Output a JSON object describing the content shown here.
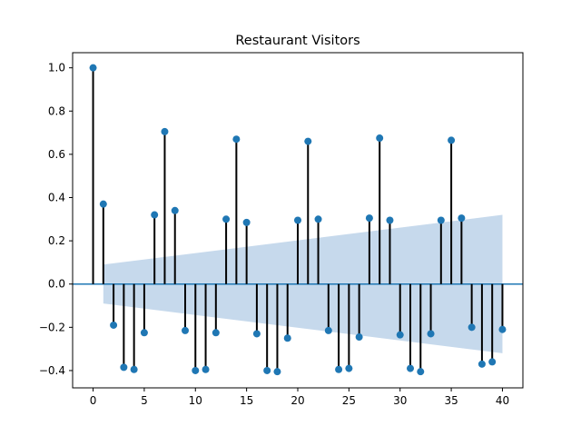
{
  "chart_data": {
    "type": "stem",
    "title": "Restaurant Visitors",
    "xlabel": "",
    "ylabel": "",
    "xlim": [
      -2,
      42
    ],
    "ylim": [
      -0.48,
      1.07
    ],
    "xticks": [
      0,
      5,
      10,
      15,
      20,
      25,
      30,
      35,
      40
    ],
    "yticks": [
      -0.4,
      -0.2,
      0.0,
      0.2,
      0.4,
      0.6,
      0.8,
      1.0
    ],
    "ytick_labels": [
      "−0.4",
      "−0.2",
      "0.0",
      "0.2",
      "0.4",
      "0.6",
      "0.8",
      "1.0"
    ],
    "grid": false,
    "legend": "none",
    "series": [
      {
        "x": [
          0,
          1,
          2,
          3,
          4,
          5,
          6,
          7,
          8,
          9,
          10,
          11,
          12,
          13,
          14,
          15,
          16,
          17,
          18,
          19,
          20,
          21,
          22,
          23,
          24,
          25,
          26,
          27,
          28,
          29,
          30,
          31,
          32,
          33,
          34,
          35,
          36,
          37,
          38,
          39,
          40
        ],
        "values": [
          1.0,
          0.37,
          -0.19,
          -0.385,
          -0.395,
          -0.225,
          0.32,
          0.705,
          0.34,
          -0.215,
          -0.4,
          -0.395,
          -0.225,
          0.3,
          0.67,
          0.285,
          -0.23,
          -0.4,
          -0.405,
          -0.25,
          0.295,
          0.66,
          0.3,
          -0.215,
          -0.395,
          -0.39,
          -0.245,
          0.305,
          0.675,
          0.295,
          -0.235,
          -0.39,
          -0.405,
          -0.23,
          0.295,
          0.665,
          0.305,
          -0.2,
          -0.37,
          -0.36,
          -0.21
        ]
      }
    ],
    "confidence_band": {
      "x": [
        1,
        40
      ],
      "upper": [
        0.09,
        0.32
      ],
      "lower": [
        -0.09,
        -0.32
      ]
    },
    "colors": {
      "marker": "#1f77b4",
      "stem": "#000000",
      "zero_line": "#1f77b4",
      "band": "#c6d9ec"
    }
  }
}
